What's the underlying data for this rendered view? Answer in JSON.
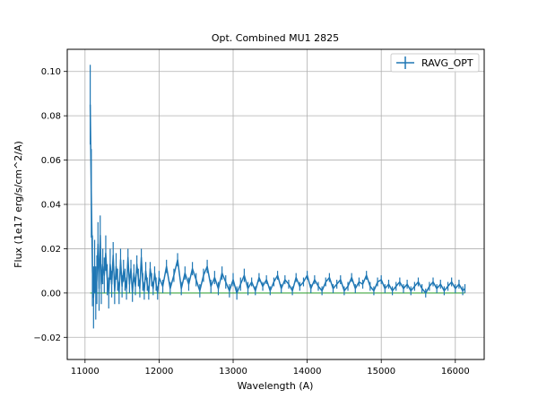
{
  "chart_data": {
    "type": "line",
    "title": "Opt. Combined MU1 2825",
    "xlabel": "Wavelength (A)",
    "ylabel": "Flux (1e17 erg/s/cm^2/A)",
    "xlim": [
      10760,
      16390
    ],
    "ylim": [
      -0.03,
      0.11
    ],
    "x_ticks": [
      11000,
      12000,
      13000,
      14000,
      15000,
      16000
    ],
    "y_ticks": [
      -0.02,
      0.0,
      0.02,
      0.04,
      0.06,
      0.08,
      0.1
    ],
    "x_tick_labels": [
      "11000",
      "12000",
      "13000",
      "14000",
      "15000",
      "16000"
    ],
    "y_tick_labels": [
      "−0.02",
      "0.00",
      "0.02",
      "0.04",
      "0.06",
      "0.08",
      "0.10"
    ],
    "grid": true,
    "legend_position": "top-right",
    "series": [
      {
        "name": "RAVG_OPT",
        "color": "#1f77b4",
        "style": "errorbar-line",
        "x": [
          11070,
          11085,
          11100,
          11115,
          11130,
          11145,
          11160,
          11175,
          11190,
          11205,
          11220,
          11240,
          11260,
          11280,
          11300,
          11320,
          11340,
          11360,
          11380,
          11400,
          11420,
          11440,
          11460,
          11480,
          11500,
          11520,
          11540,
          11560,
          11580,
          11600,
          11620,
          11640,
          11660,
          11680,
          11700,
          11720,
          11740,
          11760,
          11780,
          11800,
          11820,
          11840,
          11860,
          11880,
          11900,
          11920,
          11940,
          11960,
          11980,
          12000,
          12050,
          12100,
          12150,
          12200,
          12250,
          12300,
          12350,
          12400,
          12450,
          12500,
          12550,
          12600,
          12650,
          12700,
          12750,
          12800,
          12850,
          12900,
          12950,
          13000,
          13050,
          13100,
          13150,
          13200,
          13250,
          13300,
          13350,
          13400,
          13450,
          13500,
          13550,
          13600,
          13650,
          13700,
          13750,
          13800,
          13850,
          13900,
          13950,
          14000,
          14050,
          14100,
          14150,
          14200,
          14250,
          14300,
          14350,
          14400,
          14450,
          14500,
          14550,
          14600,
          14650,
          14700,
          14750,
          14800,
          14850,
          14900,
          14950,
          15000,
          15050,
          15100,
          15150,
          15200,
          15250,
          15300,
          15350,
          15400,
          15450,
          15500,
          15550,
          15600,
          15650,
          15700,
          15750,
          15800,
          15850,
          15900,
          15950,
          16000,
          16050,
          16100,
          16130
        ],
        "y": [
          0.085,
          0.045,
          0.01,
          -0.002,
          0.012,
          0.0,
          0.006,
          0.022,
          0.002,
          0.026,
          0.004,
          0.012,
          0.008,
          0.018,
          0.006,
          0.0,
          0.013,
          0.004,
          0.017,
          0.001,
          0.012,
          0.006,
          0.0,
          0.015,
          0.003,
          0.01,
          0.006,
          0.002,
          0.016,
          0.004,
          0.011,
          0.0,
          0.009,
          0.003,
          0.013,
          0.007,
          0.002,
          0.016,
          0.005,
          0.001,
          0.01,
          0.004,
          0.0,
          0.011,
          0.006,
          0.002,
          0.009,
          0.004,
          0.0,
          0.007,
          0.003,
          0.012,
          0.002,
          0.008,
          0.015,
          0.002,
          0.009,
          0.004,
          0.011,
          0.006,
          0.001,
          0.008,
          0.012,
          0.003,
          0.007,
          0.002,
          0.009,
          0.005,
          0.001,
          0.006,
          0.0,
          0.004,
          0.008,
          0.002,
          0.005,
          0.001,
          0.007,
          0.003,
          0.006,
          0.001,
          0.005,
          0.008,
          0.002,
          0.006,
          0.004,
          0.001,
          0.007,
          0.003,
          0.005,
          0.008,
          0.002,
          0.006,
          0.003,
          0.001,
          0.005,
          0.007,
          0.002,
          0.004,
          0.006,
          0.001,
          0.003,
          0.007,
          0.002,
          0.005,
          0.004,
          0.008,
          0.003,
          0.001,
          0.005,
          0.006,
          0.002,
          0.004,
          0.001,
          0.003,
          0.005,
          0.002,
          0.004,
          0.001,
          0.003,
          0.005,
          0.002,
          0.0,
          0.003,
          0.005,
          0.002,
          0.004,
          0.001,
          0.003,
          0.005,
          0.002,
          0.004,
          0.001,
          0.002
        ],
        "err": [
          0.018,
          0.02,
          0.016,
          0.014,
          0.012,
          0.012,
          0.011,
          0.01,
          0.01,
          0.009,
          0.009,
          0.008,
          0.008,
          0.008,
          0.007,
          0.007,
          0.007,
          0.006,
          0.006,
          0.006,
          0.006,
          0.005,
          0.005,
          0.005,
          0.005,
          0.005,
          0.005,
          0.005,
          0.004,
          0.004,
          0.004,
          0.004,
          0.004,
          0.004,
          0.004,
          0.004,
          0.004,
          0.004,
          0.004,
          0.004,
          0.004,
          0.003,
          0.003,
          0.003,
          0.003,
          0.003,
          0.003,
          0.003,
          0.003,
          0.003,
          0.003,
          0.003,
          0.003,
          0.003,
          0.003,
          0.003,
          0.003,
          0.003,
          0.003,
          0.003,
          0.003,
          0.003,
          0.003,
          0.003,
          0.003,
          0.003,
          0.003,
          0.003,
          0.003,
          0.003,
          0.003,
          0.003,
          0.003,
          0.003,
          0.002,
          0.002,
          0.002,
          0.002,
          0.002,
          0.002,
          0.002,
          0.002,
          0.002,
          0.002,
          0.002,
          0.002,
          0.002,
          0.002,
          0.002,
          0.002,
          0.002,
          0.002,
          0.002,
          0.002,
          0.002,
          0.002,
          0.002,
          0.002,
          0.002,
          0.002,
          0.002,
          0.002,
          0.002,
          0.002,
          0.002,
          0.002,
          0.002,
          0.002,
          0.002,
          0.002,
          0.002,
          0.002,
          0.002,
          0.002,
          0.002,
          0.002,
          0.002,
          0.002,
          0.002,
          0.002,
          0.002,
          0.002,
          0.002,
          0.002,
          0.002,
          0.002,
          0.002,
          0.002,
          0.002,
          0.002,
          0.002,
          0.002,
          0.002
        ]
      }
    ]
  }
}
